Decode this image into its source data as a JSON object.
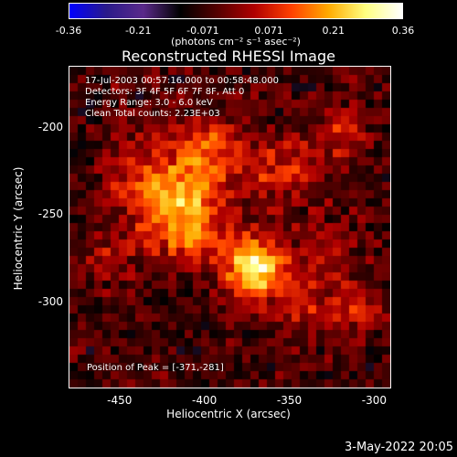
{
  "colorbar": {
    "ticks": [
      "-0.36",
      "-0.21",
      "-0.071",
      "0.071",
      "0.21",
      "0.36"
    ],
    "vmin": -0.36,
    "vmax": 0.36,
    "units": "(photons cm⁻² s⁻¹ asec⁻²)",
    "colormap": [
      "#0000ff",
      "#2a1a8a",
      "#5a2a8a",
      "#000000",
      "#550000",
      "#b00000",
      "#ff4000",
      "#ffaa00",
      "#ffff80",
      "#ffffff"
    ]
  },
  "chart_data": {
    "type": "heatmap",
    "title": "Reconstructed RHESSI Image",
    "xlabel": "Heliocentric X (arcsec)",
    "ylabel": "Heliocentric Y (arcsec)",
    "xlim": [
      -480,
      -290
    ],
    "ylim": [
      -350,
      -165
    ],
    "xticks": [
      "-450",
      "-400",
      "-350",
      "-300"
    ],
    "yticks": [
      "-200",
      "-250",
      "-300"
    ],
    "peak": {
      "x": -371,
      "y": -281,
      "value": 0.36
    },
    "sources": [
      {
        "x": -371,
        "y": -281,
        "value": 0.36,
        "sigma": 12
      },
      {
        "x": -410,
        "y": -255,
        "value": 0.24,
        "sigma": 16
      },
      {
        "x": -430,
        "y": -230,
        "value": 0.18,
        "sigma": 18
      },
      {
        "x": -395,
        "y": -215,
        "value": 0.17,
        "sigma": 14
      },
      {
        "x": -355,
        "y": -225,
        "value": 0.14,
        "sigma": 14
      },
      {
        "x": -320,
        "y": -205,
        "value": 0.12,
        "sigma": 11
      },
      {
        "x": -315,
        "y": -305,
        "value": 0.13,
        "sigma": 12
      },
      {
        "x": -330,
        "y": -270,
        "value": 0.09,
        "sigma": 12
      },
      {
        "x": -455,
        "y": -275,
        "value": 0.08,
        "sigma": 12
      },
      {
        "x": -345,
        "y": -300,
        "value": 0.1,
        "sigma": 12
      }
    ]
  },
  "annotations": {
    "time": "17-Jul-2003 00:57:16.000 to 00:58:48.000",
    "detectors": "Detectors: 3F 4F 5F 6F 7F 8F, Att 0",
    "energy": "Energy Range: 3.0 - 6.0 keV",
    "clean": "Clean    Total counts: 2.23E+03",
    "peak_text": "Position of Peak = [-371,-281]"
  },
  "footer": {
    "date": "3-May-2022 20:05"
  }
}
